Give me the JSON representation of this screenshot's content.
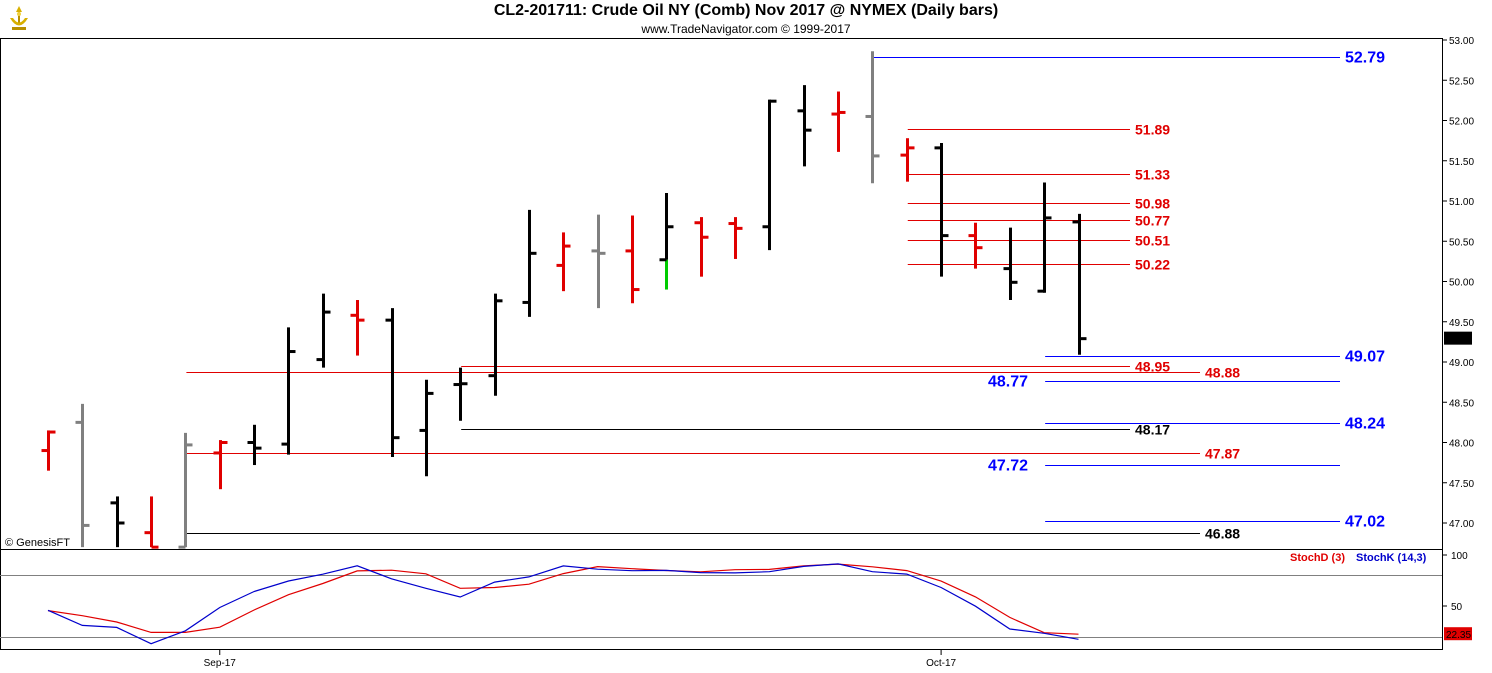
{
  "header": {
    "title": "CL2-201711:  Crude Oil NY (Comb) Nov 2017 @ NYMEX  (Daily bars)",
    "copyright": "www.TradeNavigator.com © 1999-2017"
  },
  "watermark": "© GenesisFT",
  "last_price_tag": "49.29",
  "stoch_tags": {
    "d": "22.35"
  },
  "chart_data": [
    {
      "type": "ohlc",
      "title": "CL2-201711:  Crude Oil NY (Comb) Nov 2017 @ NYMEX  (Daily bars)",
      "y_ticks": [
        "47.00",
        "47.50",
        "48.00",
        "48.50",
        "49.00",
        "49.50",
        "50.00",
        "50.50",
        "51.00",
        "51.50",
        "52.00",
        "52.50",
        "53.00"
      ],
      "ylim": [
        46.7,
        53.05
      ],
      "x_ticks": [
        {
          "label": "Sep-17",
          "index": 5
        },
        {
          "label": "Oct-17",
          "index": 26
        }
      ],
      "bars": [
        {
          "o": 47.9,
          "h": 48.15,
          "l": 47.65,
          "c": 48.13,
          "color": "#e00000"
        },
        {
          "o": 48.25,
          "h": 48.48,
          "l": 46.7,
          "c": 46.97,
          "color": "#808080"
        },
        {
          "o": 47.25,
          "h": 47.33,
          "l": 46.7,
          "c": 47.0,
          "color": "#000000"
        },
        {
          "o": 46.88,
          "h": 47.33,
          "l": 46.7,
          "c": 46.7,
          "color": "#e00000"
        },
        {
          "o": 46.7,
          "h": 48.12,
          "l": 46.7,
          "c": 47.97,
          "color": "#808080"
        },
        {
          "o": 47.87,
          "h": 48.03,
          "l": 47.42,
          "c": 48.0,
          "color": "#e00000"
        },
        {
          "o": 48.0,
          "h": 48.22,
          "l": 47.72,
          "c": 47.93,
          "color": "#000000"
        },
        {
          "o": 47.98,
          "h": 49.43,
          "l": 47.85,
          "c": 49.13,
          "color": "#000000"
        },
        {
          "o": 49.03,
          "h": 49.85,
          "l": 48.93,
          "c": 49.62,
          "color": "#000000"
        },
        {
          "o": 49.58,
          "h": 49.77,
          "l": 49.08,
          "c": 49.52,
          "color": "#e00000"
        },
        {
          "o": 49.52,
          "h": 49.67,
          "l": 47.82,
          "c": 48.06,
          "color": "#000000"
        },
        {
          "o": 48.15,
          "h": 48.78,
          "l": 47.58,
          "c": 48.61,
          "color": "#000000"
        },
        {
          "o": 48.72,
          "h": 48.93,
          "l": 48.27,
          "c": 48.73,
          "color": "#000000"
        },
        {
          "o": 48.83,
          "h": 49.85,
          "l": 48.58,
          "c": 49.76,
          "color": "#000000"
        },
        {
          "o": 49.74,
          "h": 50.89,
          "l": 49.56,
          "c": 50.35,
          "color": "#000000"
        },
        {
          "o": 50.2,
          "h": 50.61,
          "l": 49.88,
          "c": 50.44,
          "color": "#e00000"
        },
        {
          "o": 50.38,
          "h": 50.83,
          "l": 49.67,
          "c": 50.35,
          "color": "#808080"
        },
        {
          "o": 50.38,
          "h": 50.82,
          "l": 49.73,
          "c": 49.9,
          "color": "#e00000"
        },
        {
          "o": 50.27,
          "h": 51.1,
          "l": 49.9,
          "c": 50.68,
          "color": "#000000",
          "low_tail_color": "#00cc00"
        },
        {
          "o": 50.73,
          "h": 50.8,
          "l": 50.06,
          "c": 50.55,
          "color": "#e00000"
        },
        {
          "o": 50.72,
          "h": 50.8,
          "l": 50.28,
          "c": 50.66,
          "color": "#e00000"
        },
        {
          "o": 50.68,
          "h": 52.26,
          "l": 50.39,
          "c": 52.24,
          "color": "#000000"
        },
        {
          "o": 52.12,
          "h": 52.44,
          "l": 51.43,
          "c": 51.88,
          "color": "#000000"
        },
        {
          "o": 52.08,
          "h": 52.36,
          "l": 51.61,
          "c": 52.1,
          "color": "#e00000"
        },
        {
          "o": 52.05,
          "h": 52.86,
          "l": 51.22,
          "c": 51.56,
          "color": "#808080"
        },
        {
          "o": 51.57,
          "h": 51.78,
          "l": 51.24,
          "c": 51.66,
          "color": "#e00000"
        },
        {
          "o": 51.66,
          "h": 51.72,
          "l": 50.06,
          "c": 50.57,
          "color": "#000000"
        },
        {
          "o": 50.57,
          "h": 50.73,
          "l": 50.16,
          "c": 50.42,
          "color": "#e00000"
        },
        {
          "o": 50.16,
          "h": 50.67,
          "l": 49.77,
          "c": 49.99,
          "color": "#000000"
        },
        {
          "o": 49.88,
          "h": 51.23,
          "l": 49.86,
          "c": 50.79,
          "color": "#000000"
        },
        {
          "o": 50.74,
          "h": 50.84,
          "l": 49.09,
          "c": 49.29,
          "color": "#000000"
        }
      ],
      "levels": [
        {
          "value": 52.79,
          "label": "52.79",
          "color": "#0000ff",
          "label_color": "#0000ff",
          "x_start_index": 24
        },
        {
          "value": 51.89,
          "label": "51.89",
          "color": "#e00000",
          "label_color": "#e00000",
          "x_start_index": 25
        },
        {
          "value": 51.33,
          "label": "51.33",
          "color": "#e00000",
          "label_color": "#e00000",
          "x_start_index": 25
        },
        {
          "value": 50.98,
          "label": "50.98",
          "color": "#e00000",
          "label_color": "#e00000",
          "x_start_index": 25
        },
        {
          "value": 50.77,
          "label": "50.77",
          "color": "#e00000",
          "label_color": "#e00000",
          "x_start_index": 25
        },
        {
          "value": 50.51,
          "label": "50.51",
          "color": "#e00000",
          "label_color": "#e00000",
          "x_start_index": 25
        },
        {
          "value": 50.22,
          "label": "50.22",
          "color": "#e00000",
          "label_color": "#e00000",
          "x_start_index": 25
        },
        {
          "value": 49.07,
          "label": "49.07",
          "color": "#0000ff",
          "label_color": "#0000ff",
          "x_start_index": 29
        },
        {
          "value": 48.95,
          "label": "48.95",
          "color": "#e00000",
          "label_color": "#e00000",
          "x_start_index": 12
        },
        {
          "value": 48.88,
          "label": "48.88",
          "color": "#e00000",
          "label_color": "#e00000",
          "x_start_index": 4
        },
        {
          "value": 48.77,
          "label": "48.77",
          "color": "#0000ff",
          "label_color": "#0000ff",
          "x_start_index": 29
        },
        {
          "value": 48.24,
          "label": "48.24",
          "color": "#0000ff",
          "label_color": "#0000ff",
          "x_start_index": 29
        },
        {
          "value": 48.17,
          "label": "48.17",
          "color": "#000000",
          "label_color": "#000000",
          "x_start_index": 12
        },
        {
          "value": 47.87,
          "label": "47.87",
          "color": "#e00000",
          "label_color": "#e00000",
          "x_start_index": 4
        },
        {
          "value": 47.72,
          "label": "47.72",
          "color": "#0000ff",
          "label_color": "#0000ff",
          "x_start_index": 29
        },
        {
          "value": 47.02,
          "label": "47.02",
          "color": "#0000ff",
          "label_color": "#0000ff",
          "x_start_index": 29
        },
        {
          "value": 46.88,
          "label": "46.88",
          "color": "#000000",
          "label_color": "#000000",
          "x_start_index": 4
        }
      ]
    },
    {
      "type": "line",
      "y_ticks": [
        "50",
        "100"
      ],
      "ylim": [
        0,
        100
      ],
      "reference_lines": [
        20,
        80
      ],
      "series": [
        {
          "name": "StochD (3)",
          "color": "#e00000",
          "values": [
            45.5,
            40.5,
            34.3,
            24.1,
            24.1,
            29.2,
            46.1,
            61.1,
            72.1,
            84.4,
            85.1,
            81.6,
            67.4,
            68.1,
            71.4,
            81.8,
            88.6,
            86.6,
            84.8,
            83.5,
            85.6,
            85.9,
            89.3,
            91.1,
            88.4,
            84.7,
            74.4,
            58.9,
            38.8,
            23.8,
            22.35
          ]
        },
        {
          "name": "StochK (14,3)",
          "color": "#0000cc",
          "values": [
            45.8,
            31.0,
            29.0,
            13.0,
            25.7,
            48.5,
            64.2,
            74.5,
            81.2,
            89.4,
            76.7,
            67.4,
            58.8,
            73.4,
            78.5,
            89.3,
            86.1,
            84.6,
            84.9,
            82.7,
            82.5,
            83.6,
            88.8,
            91.3,
            83.6,
            81.3,
            68.1,
            49.8,
            27.5,
            23.2,
            17.4
          ]
        }
      ]
    }
  ]
}
